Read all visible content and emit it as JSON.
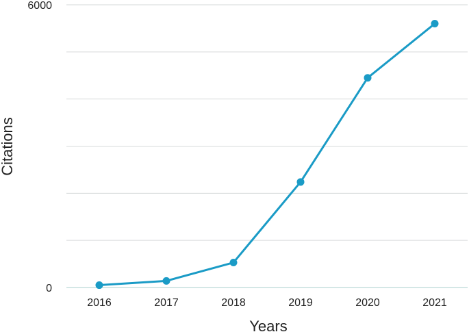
{
  "chart_data": {
    "type": "line",
    "x": [
      "2016",
      "2017",
      "2018",
      "2019",
      "2020",
      "2021"
    ],
    "series": [
      {
        "values": [
          50,
          140,
          530,
          2240,
          4450,
          5600
        ]
      }
    ],
    "xlabel": "Years",
    "ylabel": "Citations",
    "ylim": [
      0,
      6000
    ],
    "yticks_labeled": [
      "0",
      "6000"
    ],
    "grid": "horizontal",
    "line_color": "#1a9bc6"
  }
}
